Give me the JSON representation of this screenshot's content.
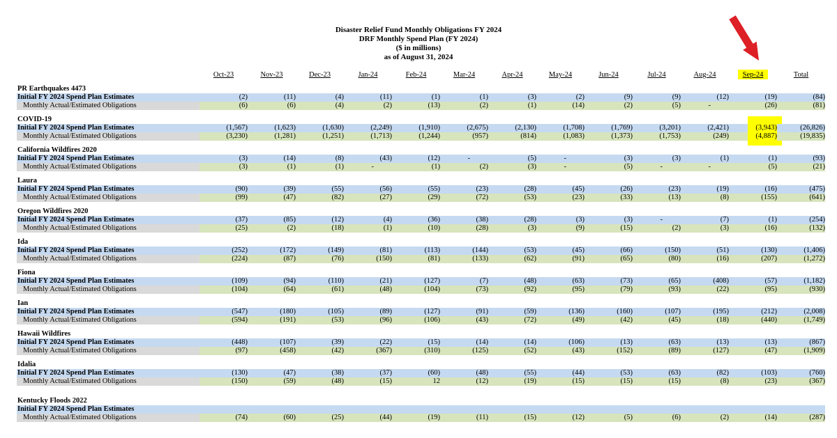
{
  "title": {
    "line1": "Disaster Relief Fund Monthly Obligations FY 2024",
    "line2": "DRF Monthly Spend Plan (FY 2024)",
    "line3": "($ in millions)",
    "line4": "as of August 31, 2024"
  },
  "columns": [
    "Oct-23",
    "Nov-23",
    "Dec-23",
    "Jan-24",
    "Feb-24",
    "Mar-24",
    "Apr-24",
    "May-24",
    "Jun-24",
    "Jul-24",
    "Aug-24",
    "Sep-24",
    "Total"
  ],
  "highlight_column": "Sep-24",
  "row_labels": {
    "initial": "Initial FY 2024 Spend Plan Estimates",
    "monthly": "Monthly Actual/Estimated Obligations"
  },
  "annotation": {
    "arrow_icon": "red-arrow-icon",
    "arrow_points_to": "Sep-24"
  },
  "colors": {
    "blue": "#c5d9f1",
    "green": "#d7e4bc",
    "gray": "#d9d9d9",
    "yellow": "#ffff00",
    "arrow_red": "#dd1f26"
  },
  "groups": [
    {
      "name": "PR Earthquakes 4473",
      "initial": [
        "(2)",
        "(11)",
        "(4)",
        "(11)",
        "(1)",
        "(1)",
        "(3)",
        "(2)",
        "(9)",
        "(9)",
        "(12)",
        "(19)",
        "(84)"
      ],
      "monthly": [
        "(6)",
        "(6)",
        "(4)",
        "(2)",
        "(13)",
        "(2)",
        "(1)",
        "(14)",
        "(2)",
        "(5)",
        "-",
        "(26)",
        "(81)"
      ]
    },
    {
      "name": "COVID-19",
      "highlight": true,
      "initial": [
        "(1,567)",
        "(1,623)",
        "(1,630)",
        "(2,249)",
        "(1,910)",
        "(2,675)",
        "(2,130)",
        "(1,708)",
        "(1,769)",
        "(3,201)",
        "(2,421)",
        "(3,943)",
        "(26,826)"
      ],
      "monthly": [
        "(3,230)",
        "(1,281)",
        "(1,251)",
        "(1,713)",
        "(1,244)",
        "(957)",
        "(814)",
        "(1,083)",
        "(1,373)",
        "(1,753)",
        "(249)",
        "(4,887)",
        "(19,835)"
      ]
    },
    {
      "name": "California Wildfires 2020",
      "initial": [
        "(3)",
        "(14)",
        "(8)",
        "(43)",
        "(12)",
        "-",
        "(5)",
        "-",
        "(3)",
        "(3)",
        "(1)",
        "(1)",
        "(93)"
      ],
      "monthly": [
        "(3)",
        "(1)",
        "(1)",
        "-",
        "(1)",
        "(2)",
        "(3)",
        "-",
        "(5)",
        "-",
        "-",
        "(5)",
        "(21)"
      ]
    },
    {
      "name": "Laura",
      "initial": [
        "(90)",
        "(39)",
        "(55)",
        "(56)",
        "(55)",
        "(23)",
        "(28)",
        "(45)",
        "(26)",
        "(23)",
        "(19)",
        "(16)",
        "(475)"
      ],
      "monthly": [
        "(99)",
        "(47)",
        "(82)",
        "(27)",
        "(29)",
        "(72)",
        "(53)",
        "(23)",
        "(33)",
        "(13)",
        "(8)",
        "(155)",
        "(641)"
      ]
    },
    {
      "name": "Oregon Wildfires 2020",
      "initial": [
        "(37)",
        "(85)",
        "(12)",
        "(4)",
        "(36)",
        "(38)",
        "(28)",
        "(3)",
        "(3)",
        "-",
        "(7)",
        "(1)",
        "(254)"
      ],
      "monthly": [
        "(25)",
        "(2)",
        "(18)",
        "(1)",
        "(10)",
        "(28)",
        "(3)",
        "(9)",
        "(15)",
        "(2)",
        "(3)",
        "(16)",
        "(132)"
      ]
    },
    {
      "name": "Ida",
      "initial": [
        "(252)",
        "(172)",
        "(149)",
        "(81)",
        "(113)",
        "(144)",
        "(53)",
        "(45)",
        "(66)",
        "(150)",
        "(51)",
        "(130)",
        "(1,406)"
      ],
      "monthly": [
        "(224)",
        "(87)",
        "(76)",
        "(150)",
        "(81)",
        "(133)",
        "(62)",
        "(91)",
        "(65)",
        "(80)",
        "(16)",
        "(207)",
        "(1,272)"
      ]
    },
    {
      "name": "Fiona",
      "initial": [
        "(109)",
        "(94)",
        "(110)",
        "(21)",
        "(127)",
        "(7)",
        "(48)",
        "(63)",
        "(73)",
        "(65)",
        "(408)",
        "(57)",
        "(1,182)"
      ],
      "monthly": [
        "(104)",
        "(64)",
        "(61)",
        "(48)",
        "(104)",
        "(73)",
        "(92)",
        "(95)",
        "(79)",
        "(93)",
        "(22)",
        "(95)",
        "(930)"
      ]
    },
    {
      "name": "Ian",
      "initial": [
        "(547)",
        "(180)",
        "(105)",
        "(89)",
        "(127)",
        "(91)",
        "(59)",
        "(136)",
        "(160)",
        "(107)",
        "(195)",
        "(212)",
        "(2,008)"
      ],
      "monthly": [
        "(594)",
        "(191)",
        "(53)",
        "(96)",
        "(106)",
        "(43)",
        "(72)",
        "(49)",
        "(42)",
        "(45)",
        "(18)",
        "(440)",
        "(1,749)"
      ]
    },
    {
      "name": "Hawaii Wildfires",
      "initial": [
        "(448)",
        "(107)",
        "(39)",
        "(22)",
        "(15)",
        "(14)",
        "(14)",
        "(106)",
        "(13)",
        "(63)",
        "(13)",
        "(13)",
        "(867)"
      ],
      "monthly": [
        "(97)",
        "(458)",
        "(42)",
        "(367)",
        "(310)",
        "(125)",
        "(52)",
        "(43)",
        "(152)",
        "(89)",
        "(127)",
        "(47)",
        "(1,909)"
      ]
    },
    {
      "name": "Idalia",
      "initial": [
        "(130)",
        "(47)",
        "(38)",
        "(37)",
        "(60)",
        "(48)",
        "(55)",
        "(44)",
        "(53)",
        "(63)",
        "(82)",
        "(103)",
        "(760)"
      ],
      "monthly": [
        "(150)",
        "(59)",
        "(48)",
        "(15)",
        "12",
        "(12)",
        "(19)",
        "(15)",
        "(15)",
        "(15)",
        "(8)",
        "(23)",
        "(367)"
      ]
    },
    {
      "name": "Kentucky Floods 2022",
      "extra_gap_before": true,
      "initial": [
        "",
        "",
        "",
        "",
        "",
        "",
        "",
        "",
        "",
        "",
        "",
        "",
        ""
      ],
      "monthly": [
        "(74)",
        "(60)",
        "(25)",
        "(44)",
        "(19)",
        "(11)",
        "(15)",
        "(12)",
        "(5)",
        "(6)",
        "(2)",
        "(14)",
        "(287)"
      ]
    }
  ]
}
